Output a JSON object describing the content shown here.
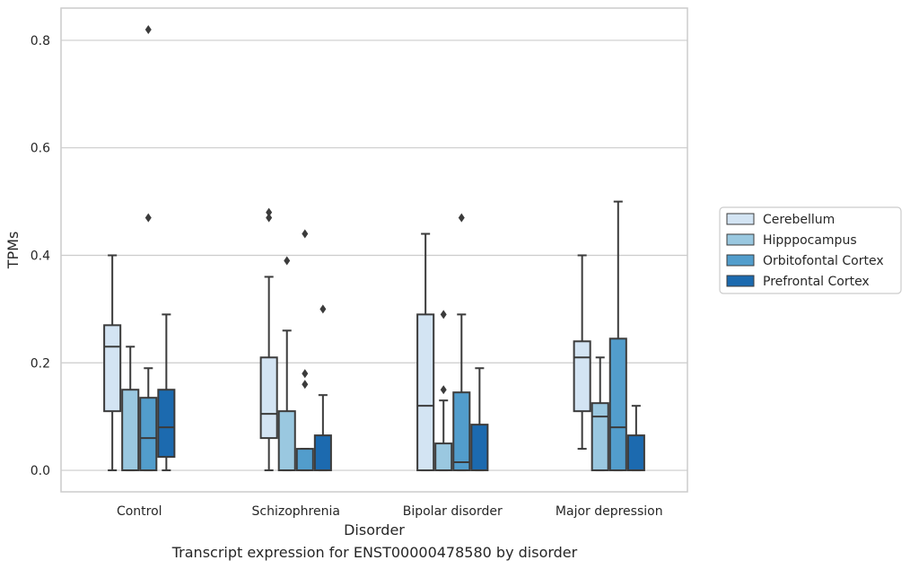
{
  "caption": "Transcript expression for ENST00000478580 by disorder",
  "chart_data": {
    "type": "box",
    "title": "",
    "xlabel": "Disorder",
    "ylabel": "TPMs",
    "ylim": [
      -0.04,
      0.86
    ],
    "yticks": [
      0.0,
      0.2,
      0.4,
      0.6,
      0.8
    ],
    "ytick_labels": [
      "0.0",
      "0.2",
      "0.4",
      "0.6",
      "0.8"
    ],
    "grid": "horizontal",
    "legend_position": "right",
    "categories": [
      "Control",
      "Schizophrenia",
      "Bipolar disorder",
      "Major depression"
    ],
    "series": [
      {
        "name": "Cerebellum",
        "color": "#d3e4f3",
        "boxes": [
          {
            "whislo": 0.0,
            "q1": 0.11,
            "med": 0.23,
            "q3": 0.27,
            "whishi": 0.4,
            "fliers": []
          },
          {
            "whislo": 0.0,
            "q1": 0.06,
            "med": 0.105,
            "q3": 0.21,
            "whishi": 0.36,
            "fliers": [
              0.47,
              0.48
            ]
          },
          {
            "whislo": 0.0,
            "q1": 0.0,
            "med": 0.12,
            "q3": 0.29,
            "whishi": 0.44,
            "fliers": []
          },
          {
            "whislo": 0.04,
            "q1": 0.11,
            "med": 0.21,
            "q3": 0.24,
            "whishi": 0.4,
            "fliers": []
          }
        ]
      },
      {
        "name": "Hipppocampus",
        "color": "#9ac8e0",
        "boxes": [
          {
            "whislo": 0.0,
            "q1": 0.0,
            "med": 0.0,
            "q3": 0.15,
            "whishi": 0.23,
            "fliers": []
          },
          {
            "whislo": 0.0,
            "q1": 0.0,
            "med": 0.0,
            "q3": 0.11,
            "whishi": 0.26,
            "fliers": [
              0.39
            ]
          },
          {
            "whislo": 0.0,
            "q1": 0.0,
            "med": 0.0,
            "q3": 0.05,
            "whishi": 0.13,
            "fliers": [
              0.15,
              0.29
            ]
          },
          {
            "whislo": 0.0,
            "q1": 0.0,
            "med": 0.1,
            "q3": 0.125,
            "whishi": 0.21,
            "fliers": []
          }
        ]
      },
      {
        "name": "Orbitofontal Cortex",
        "color": "#529dcc",
        "boxes": [
          {
            "whislo": 0.0,
            "q1": 0.0,
            "med": 0.06,
            "q3": 0.135,
            "whishi": 0.19,
            "fliers": [
              0.47,
              0.82
            ]
          },
          {
            "whislo": 0.0,
            "q1": 0.0,
            "med": 0.0,
            "q3": 0.04,
            "whishi": 0.04,
            "fliers": [
              0.16,
              0.18,
              0.44
            ]
          },
          {
            "whislo": 0.0,
            "q1": 0.0,
            "med": 0.015,
            "q3": 0.145,
            "whishi": 0.29,
            "fliers": [
              0.47
            ]
          },
          {
            "whislo": 0.0,
            "q1": 0.0,
            "med": 0.08,
            "q3": 0.245,
            "whishi": 0.5,
            "fliers": []
          }
        ]
      },
      {
        "name": "Prefrontal Cortex",
        "color": "#1c6aaf",
        "boxes": [
          {
            "whislo": 0.0,
            "q1": 0.025,
            "med": 0.08,
            "q3": 0.15,
            "whishi": 0.29,
            "fliers": []
          },
          {
            "whislo": 0.0,
            "q1": 0.0,
            "med": 0.0,
            "q3": 0.065,
            "whishi": 0.14,
            "fliers": [
              0.3
            ]
          },
          {
            "whislo": 0.0,
            "q1": 0.0,
            "med": 0.0,
            "q3": 0.085,
            "whishi": 0.19,
            "fliers": []
          },
          {
            "whislo": 0.0,
            "q1": 0.0,
            "med": 0.0,
            "q3": 0.065,
            "whishi": 0.12,
            "fliers": []
          }
        ]
      }
    ]
  }
}
